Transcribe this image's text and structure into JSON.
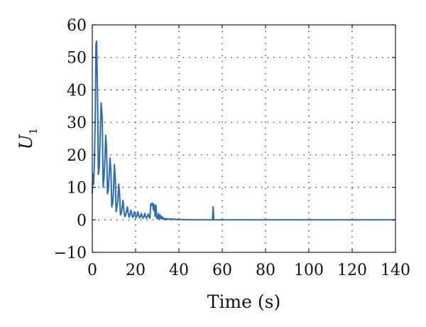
{
  "chart_data": {
    "type": "line",
    "xlabel": "Time (s)",
    "ylabel_main": "U",
    "ylabel_sub": "1",
    "xlim": [
      0,
      140
    ],
    "ylim": [
      -10,
      60
    ],
    "xticks": [
      0,
      20,
      40,
      60,
      80,
      100,
      120,
      140
    ],
    "yticks": [
      -10,
      0,
      10,
      20,
      30,
      40,
      50,
      60
    ],
    "xtick_labels": [
      "0",
      "20",
      "40",
      "60",
      "80",
      "100",
      "120",
      "140"
    ],
    "ytick_labels": [
      "−10",
      "0",
      "10",
      "20",
      "30",
      "40",
      "50",
      "60"
    ],
    "grid": true,
    "series": [
      {
        "color": "#2a6db5",
        "x": [
          0,
          0.3,
          0.6,
          1.0,
          1.4,
          1.7,
          2.0,
          2.4,
          2.8,
          3.2,
          3.6,
          4.1,
          4.6,
          5.0,
          5.4,
          5.8,
          6.2,
          6.6,
          7.0,
          7.4,
          7.8,
          8.2,
          8.6,
          9.0,
          9.4,
          9.8,
          10.2,
          10.6,
          11.0,
          11.4,
          11.8,
          12.2,
          12.6,
          13.0,
          13.4,
          13.8,
          14.2,
          14.6,
          15.0,
          15.4,
          15.8,
          16.2,
          16.6,
          17.0,
          17.4,
          17.8,
          18.2,
          18.6,
          19.0,
          19.4,
          19.8,
          20.2,
          20.6,
          21.0,
          21.4,
          21.8,
          22.2,
          22.6,
          23.0,
          23.4,
          23.8,
          24.2,
          24.6,
          25.0,
          25.4,
          25.8,
          26.2,
          26.6,
          27.0,
          27.4,
          27.8,
          28.2,
          28.6,
          29.0,
          29.4,
          29.8,
          30.2,
          30.6,
          31.0,
          31.4,
          31.8,
          32.2,
          32.6,
          33.0,
          33.4,
          33.8,
          34.2,
          34.6,
          35.0,
          35.5,
          36.0,
          36.5,
          37.0,
          37.5,
          38.0,
          38.5,
          39.0,
          39.5,
          40.0,
          40.5,
          41.0,
          41.5,
          42.0,
          42.5,
          43.0,
          44.0,
          45.0,
          46.0,
          47.0,
          48.0,
          49.0,
          50.0,
          51.0,
          52.0,
          53.0,
          54.0,
          55.0,
          55.5,
          55.8,
          56.1,
          56.4,
          57.0,
          60.0,
          80.0,
          100.0,
          120.0,
          140.0
        ],
        "y": [
          8,
          14,
          11,
          18,
          34,
          54,
          55,
          38,
          14,
          16,
          25,
          36,
          31,
          10,
          13,
          18,
          26,
          22,
          8,
          9,
          14,
          19,
          15,
          4,
          5,
          9,
          17,
          13,
          2.5,
          4,
          6,
          11,
          8,
          1.5,
          2,
          4,
          6,
          3,
          1,
          1.5,
          2.5,
          4,
          2,
          0.8,
          1.5,
          3,
          2,
          0.8,
          1,
          2.5,
          1.5,
          0.7,
          1.2,
          2.5,
          1.5,
          0.6,
          1,
          2,
          1,
          0.5,
          1,
          2,
          1,
          0.5,
          1,
          1.8,
          1,
          0.5,
          5,
          4.5,
          5.2,
          3,
          4.8,
          1,
          4.5,
          0.5,
          0.3,
          2,
          0.3,
          1.5,
          0.3,
          1,
          0.2,
          0.6,
          0.1,
          0.4,
          0.1,
          0.4,
          0.1,
          0.3,
          0.1,
          0.3,
          0.1,
          0.3,
          0.1,
          0.2,
          0.05,
          0.2,
          0.05,
          0.15,
          0.05,
          0.1,
          0.05,
          0.1,
          0,
          0.1,
          0,
          0.05,
          0,
          0.05,
          0,
          0.05,
          0,
          0.05,
          0,
          0,
          0,
          0,
          4,
          0.2,
          0,
          0,
          0,
          0,
          0,
          0,
          0
        ]
      }
    ]
  }
}
